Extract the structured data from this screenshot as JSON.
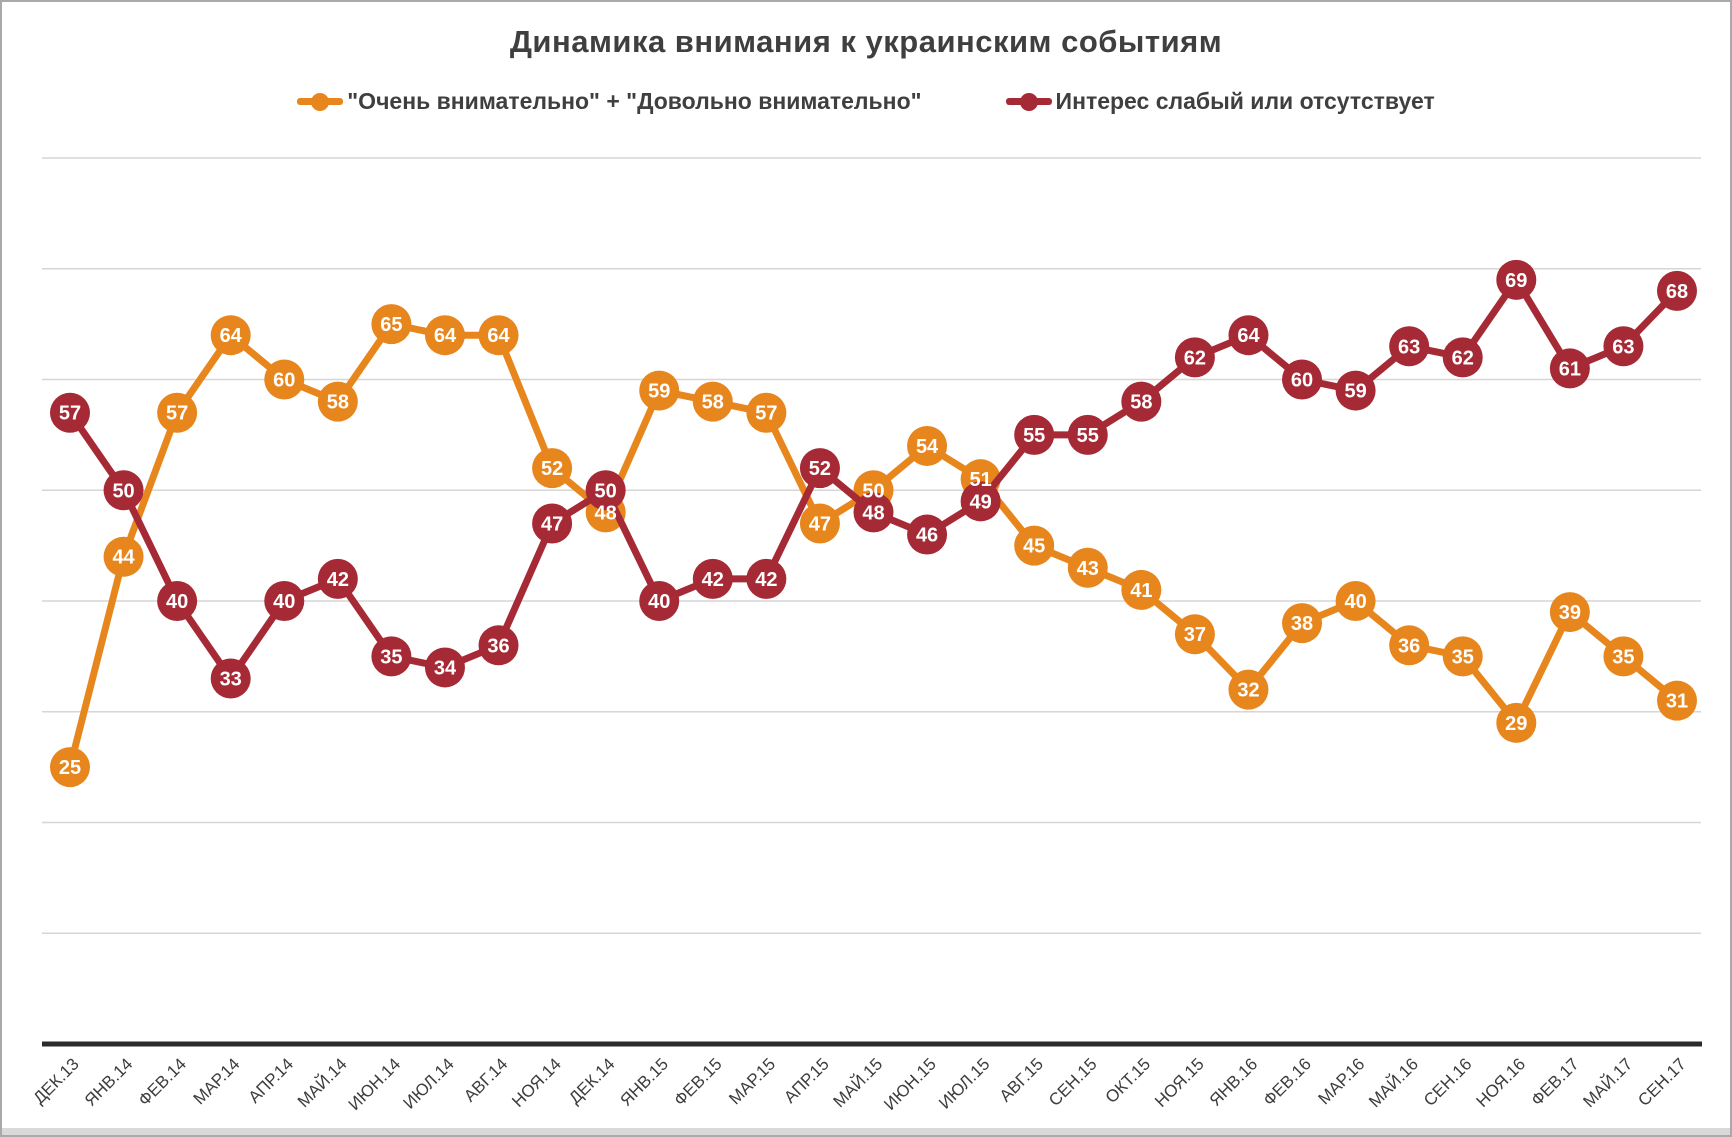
{
  "window": {
    "background": "#ffffff",
    "border_color": "#a9a9a9"
  },
  "chart_data": {
    "type": "line",
    "title": "Динамика внимания к украинским событиям",
    "categories": [
      "ДЕК.13",
      "ЯНВ.14",
      "ФЕВ.14",
      "МАР.14",
      "АПР.14",
      "МАЙ.14",
      "ИЮН.14",
      "ИЮЛ.14",
      "АВГ.14",
      "НОЯ.14",
      "ДЕК.14",
      "ЯНВ.15",
      "ФЕВ.15",
      "МАР.15",
      "АПР.15",
      "МАЙ.15",
      "ИЮН.15",
      "ИЮЛ.15",
      "АВГ.15",
      "СЕН.15",
      "ОКТ.15",
      "НОЯ.15",
      "ЯНВ.16",
      "ФЕВ.16",
      "МАР.16",
      "МАЙ.16",
      "СЕН.16",
      "НОЯ.16",
      "ФЕВ.17",
      "МАЙ.17",
      "СЕН.17"
    ],
    "series": [
      {
        "name": "\"Очень внимательно\" + \"Довольно внимательно\"",
        "color": "#E8861E",
        "values": [
          25,
          44,
          57,
          64,
          60,
          58,
          65,
          64,
          64,
          52,
          48,
          59,
          58,
          57,
          47,
          50,
          54,
          51,
          45,
          43,
          41,
          37,
          32,
          38,
          40,
          36,
          35,
          29,
          39,
          35,
          31
        ]
      },
      {
        "name": "Интерес слабый или отсутствует",
        "color": "#A52A35",
        "values": [
          57,
          50,
          40,
          33,
          40,
          42,
          35,
          34,
          36,
          47,
          50,
          40,
          42,
          42,
          52,
          48,
          46,
          49,
          55,
          55,
          58,
          62,
          64,
          60,
          59,
          63,
          62,
          69,
          61,
          63,
          68
        ]
      }
    ],
    "ylim": [
      0,
      85
    ],
    "y_gridline_values": [
      10,
      20,
      30,
      40,
      50,
      60,
      70,
      80
    ],
    "y_axis_labels_visible": false,
    "grid": "horizontal only",
    "legend_position": "top",
    "data_labels": "value inside each round marker",
    "styles": {
      "title_color": "#3F3F3F",
      "legend_text_color": "#3F3F3F",
      "axis_label_color": "#3D3D3D",
      "gridline_color": "#D6D6D6",
      "axis_line_color": "#2B2B2B",
      "marker_label_color": "#FFFFFF"
    }
  }
}
